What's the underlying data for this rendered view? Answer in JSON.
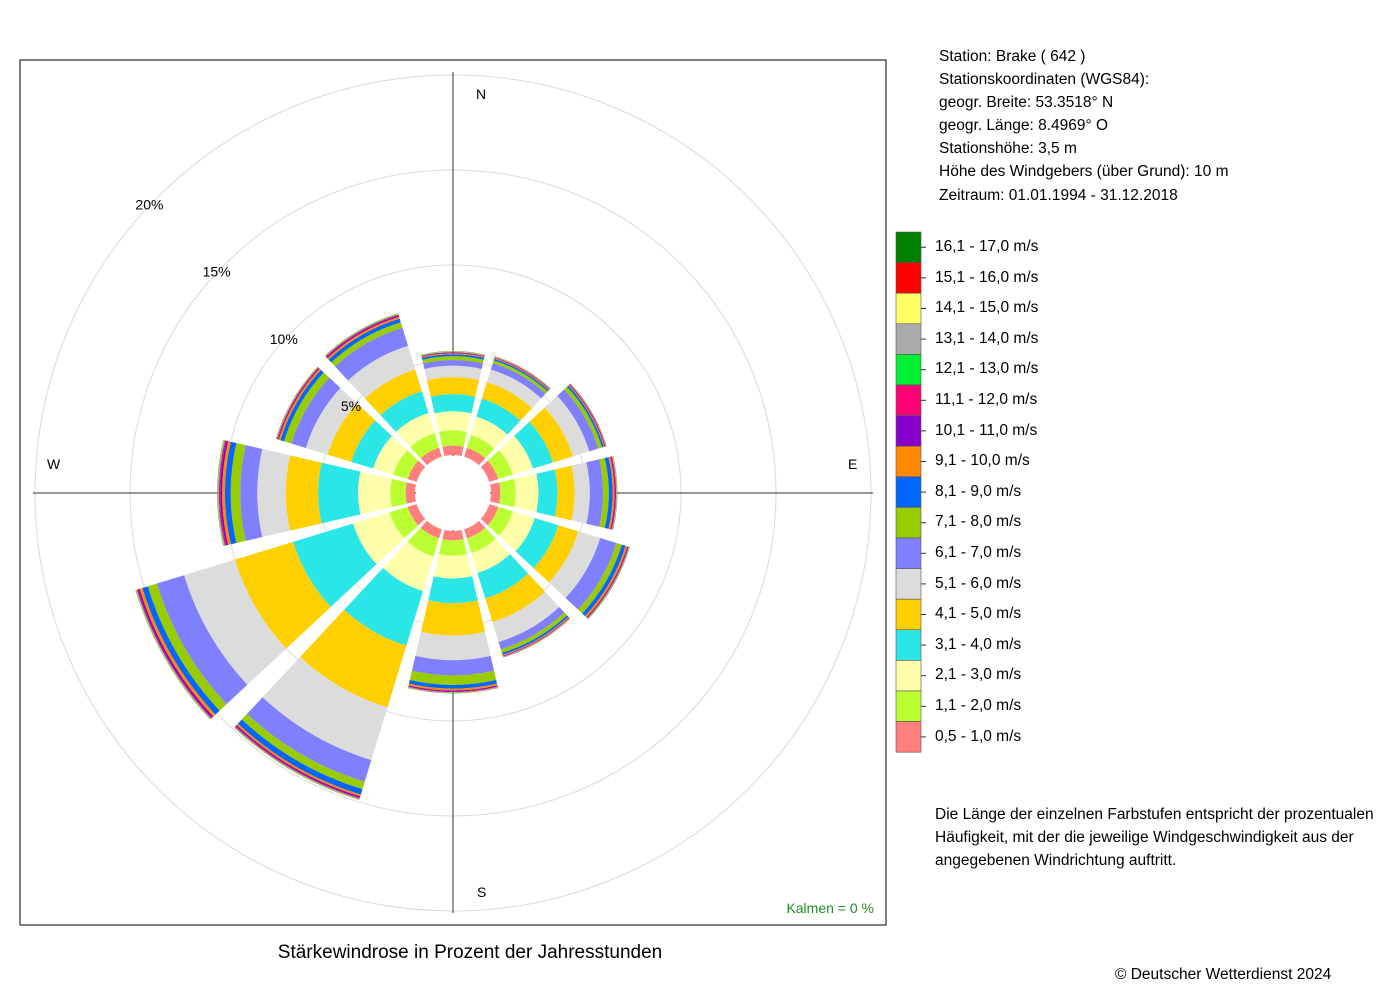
{
  "station": {
    "line1": "Station:  Brake  ( 642 )",
    "line2": "Stationskoordinaten (WGS84):",
    "line3": "geogr. Breite: 53.3518° N",
    "line4": "geogr. Länge:   8.4969° O",
    "line5": "Stationshöhe: 3,5 m",
    "line6": "Höhe des Windgebers (über Grund): 10 m",
    "line7": "Zeitraum: 01.01.1994 - 31.12.2018"
  },
  "compass": {
    "n": "N",
    "e": "E",
    "s": "S",
    "w": "W"
  },
  "calm_label": "Kalmen  =  0 %",
  "title": "Stärkewindrose in Prozent der Jahresstunden",
  "note": "Die Länge der einzelnen Farbstufen entspricht der prozentualen Häufigkeit, mit der die jeweilige Windgeschwindigkeit aus der angegebenen Windrichtung auftritt.",
  "copyright": "© Deutscher Wetterdienst  2024",
  "chart_data": {
    "type": "wind-rose",
    "title": "Stärkewindrose in Prozent der Jahresstunden",
    "directions_deg": [
      0,
      30,
      60,
      90,
      120,
      150,
      180,
      210,
      240,
      270,
      300,
      330
    ],
    "radial_ticks": [
      {
        "value": 5,
        "label": "5%"
      },
      {
        "value": 10,
        "label": "10%"
      },
      {
        "value": 15,
        "label": "15%"
      },
      {
        "value": 20,
        "label": "20%"
      }
    ],
    "rmax": 20,
    "calm_percent": 0,
    "classes": [
      {
        "label": "0,5 - 1,0 m/s",
        "color": "#ff7f7f"
      },
      {
        "label": "1,1 - 2,0 m/s",
        "color": "#bbff33"
      },
      {
        "label": "2,1 - 3,0 m/s",
        "color": "#ffffaa"
      },
      {
        "label": "3,1 - 4,0 m/s",
        "color": "#2ae6e6"
      },
      {
        "label": "4,1 - 5,0 m/s",
        "color": "#ffd000"
      },
      {
        "label": "5,1 - 6,0 m/s",
        "color": "#dcdcdc"
      },
      {
        "label": "6,1 - 7,0 m/s",
        "color": "#8080ff"
      },
      {
        "label": "7,1 - 8,0 m/s",
        "color": "#99cc00"
      },
      {
        "label": "8,1 - 9,0 m/s",
        "color": "#0066ff"
      },
      {
        "label": "9,1 - 10,0 m/s",
        "color": "#ff8800"
      },
      {
        "label": "10,1 - 11,0 m/s",
        "color": "#8800cc"
      },
      {
        "label": "11,1 - 12,0 m/s",
        "color": "#ff0077"
      },
      {
        "label": "12,1 - 13,0 m/s",
        "color": "#00ee33"
      },
      {
        "label": "13,1 - 14,0 m/s",
        "color": "#aaaaaa"
      },
      {
        "label": "14,1 - 15,0 m/s",
        "color": "#ffff66"
      },
      {
        "label": "15,1 - 16,0 m/s",
        "color": "#ff0000"
      },
      {
        "label": "16,1 - 17,0 m/s",
        "color": "#008000"
      }
    ],
    "series": [
      {
        "dir_deg": 0,
        "values": [
          0.5,
          0.8,
          1.0,
          0.9,
          0.9,
          0.6,
          0.3,
          0.2,
          0.1,
          0.05,
          0.04,
          0.02,
          0.02,
          0.01,
          0.01,
          0.01,
          0.01
        ]
      },
      {
        "dir_deg": 30,
        "values": [
          0.5,
          0.7,
          1.0,
          1.0,
          0.9,
          0.7,
          0.35,
          0.15,
          0.08,
          0.05,
          0.03,
          0.02,
          0.01,
          0.01,
          0.01,
          0.01,
          0.01
        ]
      },
      {
        "dir_deg": 60,
        "values": [
          0.5,
          0.8,
          1.1,
          1.1,
          1.1,
          0.9,
          0.5,
          0.2,
          0.1,
          0.05,
          0.04,
          0.02,
          0.01,
          0.01,
          0.01,
          0.01,
          0.01
        ]
      },
      {
        "dir_deg": 90,
        "values": [
          0.5,
          0.8,
          1.2,
          1.0,
          0.9,
          0.8,
          0.7,
          0.3,
          0.2,
          0.1,
          0.05,
          0.04,
          0.02,
          0.01,
          0.01,
          0.01,
          0.01
        ]
      },
      {
        "dir_deg": 120,
        "values": [
          0.5,
          0.8,
          1.2,
          1.3,
          1.1,
          1.2,
          0.9,
          0.3,
          0.2,
          0.1,
          0.05,
          0.03,
          0.02,
          0.01,
          0.01,
          0.01,
          0.01
        ]
      },
      {
        "dir_deg": 150,
        "values": [
          0.5,
          0.8,
          1.1,
          1.4,
          1.3,
          1.1,
          0.4,
          0.2,
          0.1,
          0.05,
          0.03,
          0.02,
          0.01,
          0.01,
          0.01,
          0.01,
          0.01
        ]
      },
      {
        "dir_deg": 180,
        "values": [
          0.5,
          0.8,
          1.2,
          1.3,
          1.7,
          1.3,
          0.8,
          0.5,
          0.2,
          0.1,
          0.05,
          0.03,
          0.02,
          0.01,
          0.01,
          0.01,
          0.01
        ]
      },
      {
        "dir_deg": 210,
        "values": [
          0.5,
          1.0,
          1.9,
          3.0,
          3.4,
          2.9,
          1.2,
          0.4,
          0.3,
          0.1,
          0.07,
          0.05,
          0.03,
          0.01,
          0.01,
          0.01,
          0.01
        ]
      },
      {
        "dir_deg": 240,
        "values": [
          0.5,
          1.0,
          2.0,
          3.3,
          3.2,
          2.8,
          1.5,
          0.5,
          0.3,
          0.15,
          0.1,
          0.05,
          0.03,
          0.02,
          0.01,
          0.01,
          0.01
        ]
      },
      {
        "dir_deg": 270,
        "values": [
          0.5,
          0.8,
          1.7,
          2.1,
          1.7,
          1.5,
          0.9,
          0.5,
          0.3,
          0.15,
          0.1,
          0.07,
          0.04,
          0.02,
          0.01,
          0.01,
          0.01
        ]
      },
      {
        "dir_deg": 300,
        "values": [
          0.5,
          0.8,
          1.1,
          1.2,
          1.3,
          1.2,
          0.8,
          0.4,
          0.2,
          0.1,
          0.05,
          0.04,
          0.02,
          0.01,
          0.01,
          0.01,
          0.01
        ]
      },
      {
        "dir_deg": 330,
        "values": [
          0.5,
          0.8,
          1.1,
          1.2,
          1.2,
          1.3,
          1.0,
          0.3,
          0.2,
          0.1,
          0.07,
          0.05,
          0.03,
          0.01,
          0.01,
          0.01,
          0.01
        ]
      }
    ]
  }
}
